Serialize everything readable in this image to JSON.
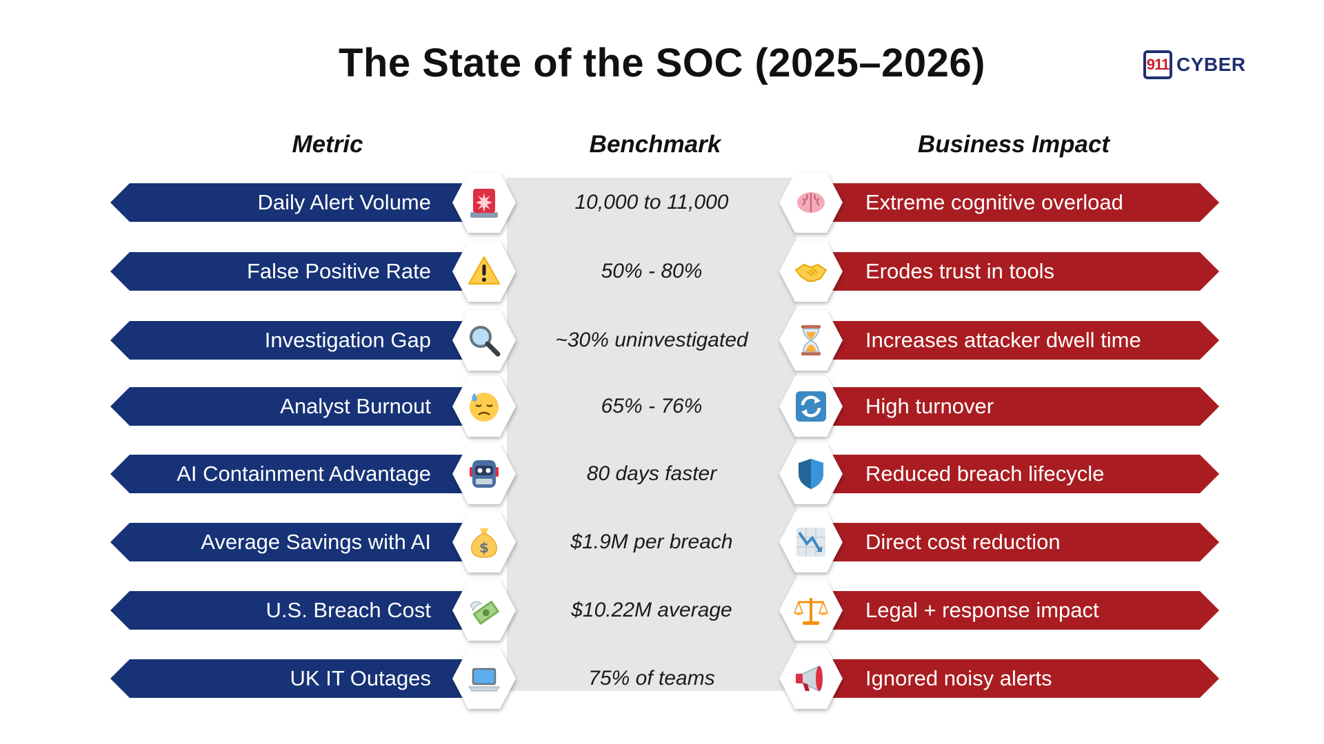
{
  "title": "The State of the SOC (2025–2026)",
  "logo": {
    "number": "911",
    "text": "CYBER"
  },
  "headers": {
    "metric": "Metric",
    "benchmark": "Benchmark",
    "impact": "Business Impact"
  },
  "colors": {
    "metric_bar": "#173276",
    "impact_bar": "#a91d22",
    "benchmark_panel": "#e6e6e6"
  },
  "rows": [
    {
      "metric": "Daily Alert Volume",
      "metric_icon": "siren-icon",
      "benchmark": "10,000 to 11,000",
      "impact_icon": "brain-icon",
      "impact": "Extreme cognitive overload"
    },
    {
      "metric": "False Positive Rate",
      "metric_icon": "warning-icon",
      "benchmark": "50% - 80%",
      "impact_icon": "handshake-icon",
      "impact": "Erodes trust in tools"
    },
    {
      "metric": "Investigation Gap",
      "metric_icon": "magnifier-icon",
      "benchmark": "~30% uninvestigated",
      "impact_icon": "hourglass-icon",
      "impact": "Increases attacker dwell time"
    },
    {
      "metric": "Analyst Burnout",
      "metric_icon": "sweat-face-icon",
      "benchmark": "65% - 76%",
      "impact_icon": "refresh-icon",
      "impact": "High turnover"
    },
    {
      "metric": "AI Containment Advantage",
      "metric_icon": "robot-icon",
      "benchmark": "80 days faster",
      "impact_icon": "shield-icon",
      "impact": "Reduced breach lifecycle"
    },
    {
      "metric": "Average Savings with AI",
      "metric_icon": "money-bag-icon",
      "benchmark": "$1.9M per breach",
      "impact_icon": "chart-down-icon",
      "impact": "Direct cost reduction"
    },
    {
      "metric": "U.S. Breach Cost",
      "metric_icon": "money-wings-icon",
      "benchmark": "$10.22M average",
      "impact_icon": "scales-icon",
      "impact": "Legal + response impact"
    },
    {
      "metric": "UK IT Outages",
      "metric_icon": "laptop-icon",
      "benchmark": "75% of teams",
      "impact_icon": "megaphone-icon",
      "impact": "Ignored noisy alerts"
    }
  ]
}
